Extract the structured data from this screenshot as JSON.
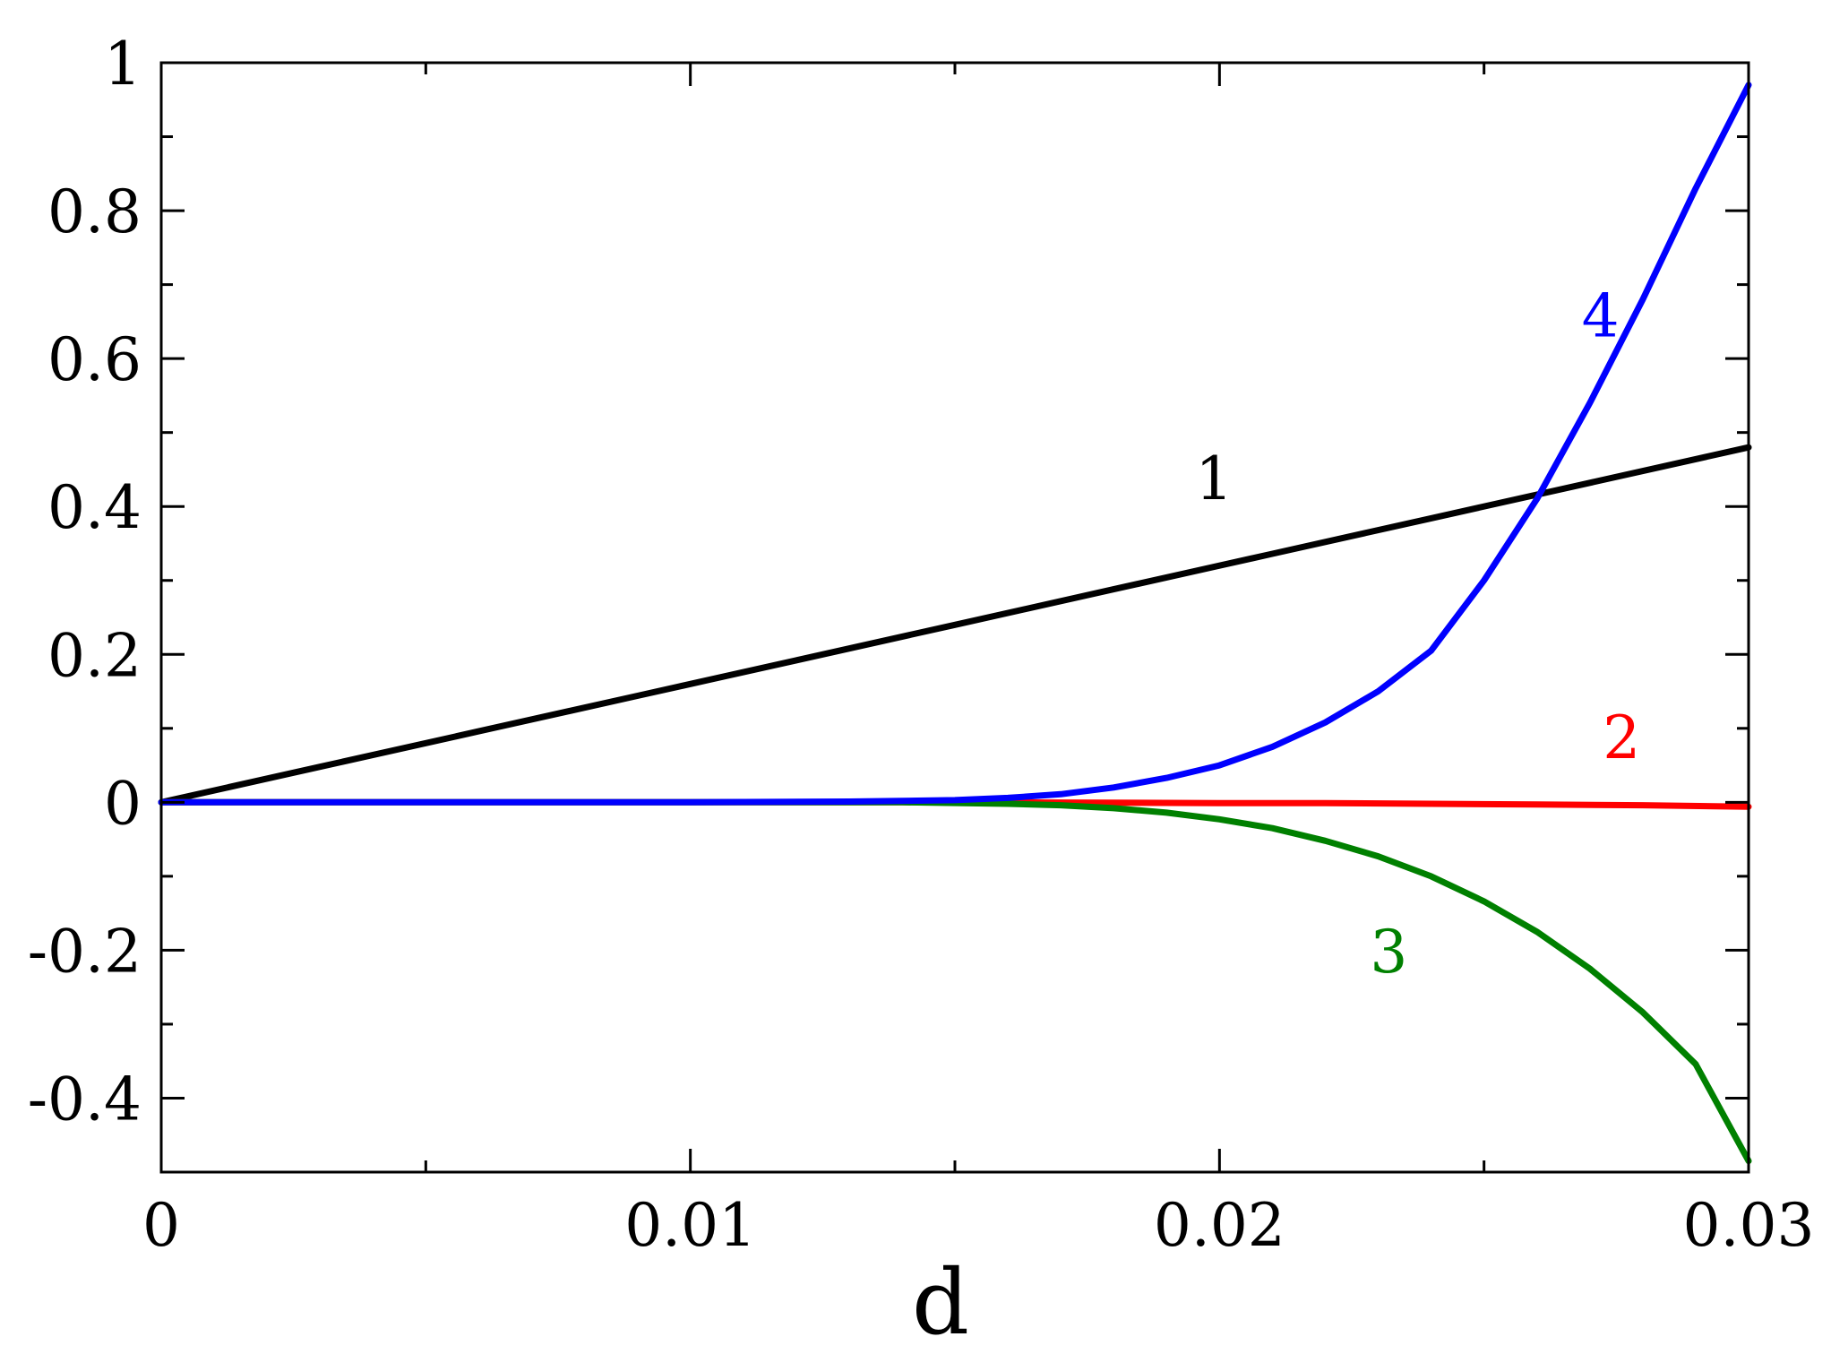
{
  "chart_data": {
    "type": "line",
    "title": "",
    "xlabel": "d",
    "ylabel": "",
    "xlim": [
      0,
      0.03
    ],
    "ylim": [
      -0.5,
      1.0
    ],
    "x_ticks": [
      0,
      0.01,
      0.02,
      0.03
    ],
    "x_tick_labels": [
      "0",
      "0.01",
      "0.02",
      "0.03"
    ],
    "x_minor_ticks": [
      0.005,
      0.015,
      0.025
    ],
    "y_ticks": [
      -0.4,
      -0.2,
      0,
      0.2,
      0.4,
      0.6,
      0.8,
      1.0
    ],
    "y_tick_labels": [
      "-0.4",
      "-0.2",
      "0",
      "0.2",
      "0.4",
      "0.6",
      "0.8",
      "1"
    ],
    "y_minor_ticks": [
      -0.3,
      -0.1,
      0.1,
      0.3,
      0.5,
      0.7,
      0.9
    ],
    "grid": false,
    "series": [
      {
        "name": "1",
        "color": "#000000",
        "x": [
          0,
          0.003,
          0.006,
          0.009,
          0.012,
          0.015,
          0.018,
          0.021,
          0.024,
          0.027,
          0.03
        ],
        "y": [
          0,
          0.048,
          0.096,
          0.144,
          0.192,
          0.24,
          0.288,
          0.336,
          0.384,
          0.432,
          0.48
        ]
      },
      {
        "name": "2",
        "color": "#ff0000",
        "x": [
          0,
          0.005,
          0.01,
          0.015,
          0.02,
          0.022,
          0.024,
          0.026,
          0.028,
          0.03
        ],
        "y": [
          0,
          0,
          0,
          0,
          -0.001,
          -0.001,
          -0.002,
          -0.003,
          -0.004,
          -0.006
        ]
      },
      {
        "name": "3",
        "color": "#008000",
        "x": [
          0,
          0.005,
          0.01,
          0.014,
          0.016,
          0.017,
          0.018,
          0.019,
          0.02,
          0.021,
          0.022,
          0.023,
          0.024,
          0.025,
          0.026,
          0.027,
          0.028,
          0.029,
          0.03
        ],
        "y": [
          0,
          0,
          0,
          0,
          -0.002,
          -0.004,
          -0.008,
          -0.014,
          -0.023,
          -0.035,
          -0.052,
          -0.073,
          -0.1,
          -0.134,
          -0.175,
          -0.225,
          -0.284,
          -0.354,
          -0.485
        ]
      },
      {
        "name": "4",
        "color": "#0000ff",
        "x": [
          0,
          0.005,
          0.01,
          0.013,
          0.015,
          0.016,
          0.017,
          0.018,
          0.019,
          0.02,
          0.021,
          0.022,
          0.023,
          0.024,
          0.025,
          0.026,
          0.027,
          0.028,
          0.029,
          0.03
        ],
        "y": [
          0,
          0,
          0,
          0.001,
          0.003,
          0.006,
          0.011,
          0.02,
          0.033,
          0.05,
          0.075,
          0.108,
          0.15,
          0.205,
          0.3,
          0.41,
          0.54,
          0.68,
          0.83,
          0.97
        ]
      }
    ],
    "annotations": [
      {
        "text": "1",
        "x": 0.0199,
        "y": 0.41,
        "color": "#000000"
      },
      {
        "text": "2",
        "x": 0.0276,
        "y": 0.06,
        "color": "#ff0000"
      },
      {
        "text": "3",
        "x": 0.0232,
        "y": -0.23,
        "color": "#008000"
      },
      {
        "text": "4",
        "x": 0.0272,
        "y": 0.63,
        "color": "#0000ff"
      }
    ]
  }
}
